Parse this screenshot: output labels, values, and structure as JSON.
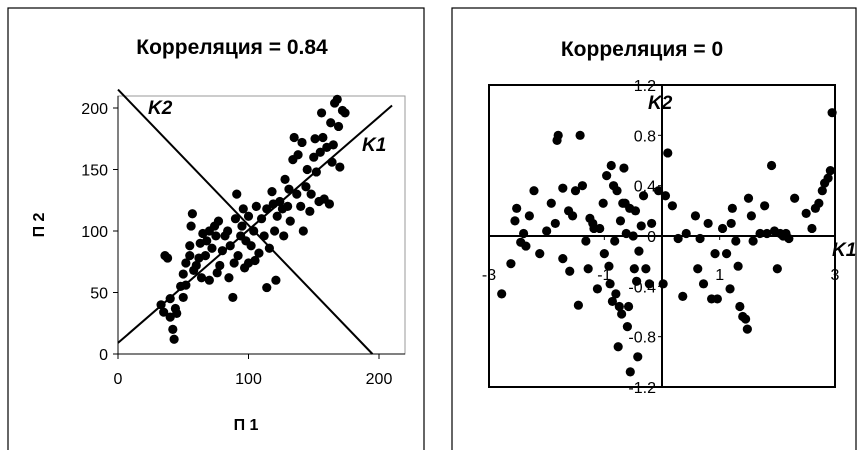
{
  "colors": {
    "marker": "#000000",
    "line": "#000000",
    "frame": "#000000",
    "background": "#ffffff"
  },
  "chart_data": [
    {
      "type": "scatter",
      "title": "Корреляция = 0.84",
      "xlabel": "П 1",
      "ylabel": "П 2",
      "xlim": [
        0,
        200
      ],
      "ylim": [
        0,
        200
      ],
      "xticks": [
        "0",
        "100",
        "200"
      ],
      "yticks": [
        "0",
        "50",
        "100",
        "150",
        "200"
      ],
      "grid": false,
      "lines": [
        {
          "label": "K1",
          "x": [
            0,
            210
          ],
          "y": [
            9,
            202
          ]
        },
        {
          "label": "K2",
          "x": [
            0,
            195
          ],
          "y": [
            215,
            0
          ]
        }
      ],
      "points": [
        [
          33,
          40
        ],
        [
          35,
          34
        ],
        [
          36,
          80
        ],
        [
          38,
          78
        ],
        [
          40,
          30
        ],
        [
          40,
          45
        ],
        [
          42,
          20
        ],
        [
          43,
          12
        ],
        [
          44,
          37
        ],
        [
          45,
          33
        ],
        [
          48,
          55
        ],
        [
          50,
          65
        ],
        [
          50,
          46
        ],
        [
          52,
          56
        ],
        [
          52,
          74
        ],
        [
          55,
          80
        ],
        [
          55,
          88
        ],
        [
          56,
          104
        ],
        [
          57,
          114
        ],
        [
          58,
          68
        ],
        [
          60,
          72
        ],
        [
          62,
          78
        ],
        [
          63,
          90
        ],
        [
          64,
          62
        ],
        [
          65,
          98
        ],
        [
          67,
          80
        ],
        [
          68,
          92
        ],
        [
          70,
          60
        ],
        [
          70,
          100
        ],
        [
          72,
          86
        ],
        [
          74,
          104
        ],
        [
          75,
          96
        ],
        [
          76,
          66
        ],
        [
          77,
          108
        ],
        [
          78,
          72
        ],
        [
          80,
          84
        ],
        [
          82,
          96
        ],
        [
          84,
          100
        ],
        [
          85,
          62
        ],
        [
          86,
          88
        ],
        [
          88,
          46
        ],
        [
          89,
          74
        ],
        [
          90,
          110
        ],
        [
          91,
          130
        ],
        [
          92,
          80
        ],
        [
          94,
          96
        ],
        [
          95,
          104
        ],
        [
          96,
          118
        ],
        [
          97,
          70
        ],
        [
          98,
          92
        ],
        [
          100,
          74
        ],
        [
          100,
          112
        ],
        [
          102,
          88
        ],
        [
          104,
          100
        ],
        [
          105,
          76
        ],
        [
          106,
          120
        ],
        [
          108,
          82
        ],
        [
          110,
          110
        ],
        [
          112,
          96
        ],
        [
          114,
          118
        ],
        [
          114,
          54
        ],
        [
          116,
          86
        ],
        [
          118,
          132
        ],
        [
          119,
          122
        ],
        [
          120,
          100
        ],
        [
          121,
          60
        ],
        [
          122,
          112
        ],
        [
          124,
          124
        ],
        [
          126,
          118
        ],
        [
          127,
          96
        ],
        [
          128,
          142
        ],
        [
          130,
          120
        ],
        [
          131,
          134
        ],
        [
          132,
          108
        ],
        [
          134,
          158
        ],
        [
          135,
          176
        ],
        [
          137,
          130
        ],
        [
          138,
          162
        ],
        [
          140,
          120
        ],
        [
          141,
          172
        ],
        [
          142,
          100
        ],
        [
          144,
          136
        ],
        [
          145,
          150
        ],
        [
          147,
          116
        ],
        [
          148,
          130
        ],
        [
          150,
          160
        ],
        [
          151,
          175
        ],
        [
          152,
          148
        ],
        [
          154,
          124
        ],
        [
          155,
          164
        ],
        [
          156,
          196
        ],
        [
          157,
          176
        ],
        [
          158,
          126
        ],
        [
          160,
          168
        ],
        [
          162,
          122
        ],
        [
          163,
          188
        ],
        [
          164,
          156
        ],
        [
          165,
          170
        ],
        [
          166,
          204
        ],
        [
          168,
          207
        ],
        [
          169,
          185
        ],
        [
          170,
          152
        ],
        [
          172,
          198
        ],
        [
          174,
          196
        ]
      ]
    },
    {
      "type": "scatter",
      "title": "Корреляция = 0",
      "xlabel": "",
      "ylabel": "",
      "xlim": [
        -3,
        3
      ],
      "ylim": [
        -1.2,
        1.2
      ],
      "xticks": [
        "-3",
        "-1",
        "1",
        "3"
      ],
      "yticks": [
        "-1.2",
        "-0.8",
        "-0.4",
        "0",
        "0.4",
        "0.8",
        "1.2"
      ],
      "grid": false,
      "axis_labels": [
        "K1",
        "K2"
      ],
      "points": [
        [
          -2.78,
          -0.46
        ],
        [
          -2.62,
          -0.22
        ],
        [
          -2.55,
          0.12
        ],
        [
          -2.52,
          0.22
        ],
        [
          -2.45,
          -0.05
        ],
        [
          -2.4,
          0.02
        ],
        [
          -2.36,
          -0.08
        ],
        [
          -2.3,
          0.16
        ],
        [
          -2.22,
          0.36
        ],
        [
          -2.12,
          -0.14
        ],
        [
          -2.0,
          0.04
        ],
        [
          -1.92,
          0.26
        ],
        [
          -1.85,
          0.1
        ],
        [
          -1.82,
          0.76
        ],
        [
          -1.8,
          0.8
        ],
        [
          -1.72,
          -0.18
        ],
        [
          -1.72,
          0.38
        ],
        [
          -1.62,
          0.2
        ],
        [
          -1.6,
          -0.28
        ],
        [
          -1.55,
          0.16
        ],
        [
          -1.5,
          0.36
        ],
        [
          -1.45,
          -0.55
        ],
        [
          -1.42,
          0.8
        ],
        [
          -1.38,
          0.4
        ],
        [
          -1.32,
          -0.04
        ],
        [
          -1.28,
          -0.26
        ],
        [
          -1.25,
          0.14
        ],
        [
          -1.2,
          0.1
        ],
        [
          -1.18,
          0.06
        ],
        [
          -1.12,
          -0.42
        ],
        [
          -1.08,
          0.06
        ],
        [
          -1.02,
          0.26
        ],
        [
          -1.0,
          -0.14
        ],
        [
          -0.96,
          0.48
        ],
        [
          -0.92,
          -0.24
        ],
        [
          -0.9,
          -0.38
        ],
        [
          -0.88,
          0.56
        ],
        [
          -0.86,
          -0.52
        ],
        [
          -0.84,
          0.4
        ],
        [
          -0.82,
          -0.04
        ],
        [
          -0.8,
          -0.46
        ],
        [
          -0.78,
          0.36
        ],
        [
          -0.76,
          -0.88
        ],
        [
          -0.74,
          -0.56
        ],
        [
          -0.72,
          0.12
        ],
        [
          -0.7,
          -0.62
        ],
        [
          -0.68,
          0.26
        ],
        [
          -0.66,
          0.54
        ],
        [
          -0.64,
          0.26
        ],
        [
          -0.62,
          0.02
        ],
        [
          -0.6,
          -0.72
        ],
        [
          -0.58,
          -0.56
        ],
        [
          -0.56,
          0.22
        ],
        [
          -0.55,
          -1.08
        ],
        [
          -0.5,
          0.0
        ],
        [
          -0.48,
          -0.26
        ],
        [
          -0.46,
          0.2
        ],
        [
          -0.44,
          -0.36
        ],
        [
          -0.42,
          -0.96
        ],
        [
          -0.4,
          -0.12
        ],
        [
          -0.36,
          0.08
        ],
        [
          -0.32,
          0.32
        ],
        [
          -0.28,
          -0.26
        ],
        [
          -0.22,
          -0.38
        ],
        [
          -0.18,
          0.1
        ],
        [
          -0.06,
          0.36
        ],
        [
          0.02,
          -0.38
        ],
        [
          0.06,
          0.32
        ],
        [
          0.1,
          0.66
        ],
        [
          0.18,
          0.24
        ],
        [
          0.28,
          -0.02
        ],
        [
          0.36,
          -0.48
        ],
        [
          0.42,
          0.02
        ],
        [
          0.58,
          0.16
        ],
        [
          0.62,
          -0.26
        ],
        [
          0.66,
          -0.02
        ],
        [
          0.72,
          -0.38
        ],
        [
          0.8,
          0.1
        ],
        [
          0.86,
          -0.5
        ],
        [
          0.92,
          -0.14
        ],
        [
          0.96,
          -0.5
        ],
        [
          1.05,
          0.06
        ],
        [
          1.12,
          -0.14
        ],
        [
          1.18,
          -0.42
        ],
        [
          1.2,
          0.1
        ],
        [
          1.22,
          0.22
        ],
        [
          1.28,
          -0.04
        ],
        [
          1.32,
          -0.24
        ],
        [
          1.35,
          -0.56
        ],
        [
          1.4,
          -0.64
        ],
        [
          1.45,
          -0.66
        ],
        [
          1.48,
          -0.74
        ],
        [
          1.5,
          0.3
        ],
        [
          1.55,
          0.16
        ],
        [
          1.58,
          -0.04
        ],
        [
          1.7,
          0.02
        ],
        [
          1.78,
          0.24
        ],
        [
          1.82,
          0.02
        ],
        [
          1.9,
          0.56
        ],
        [
          1.95,
          0.04
        ],
        [
          2.0,
          -0.26
        ],
        [
          2.05,
          0.02
        ],
        [
          2.1,
          0.0
        ],
        [
          2.15,
          0.02
        ],
        [
          2.2,
          -0.02
        ],
        [
          2.3,
          0.3
        ],
        [
          2.5,
          0.18
        ],
        [
          2.6,
          0.06
        ],
        [
          2.66,
          0.22
        ],
        [
          2.72,
          0.26
        ],
        [
          2.78,
          0.36
        ],
        [
          2.82,
          0.42
        ],
        [
          2.88,
          0.46
        ],
        [
          2.92,
          0.52
        ],
        [
          2.95,
          0.98
        ]
      ]
    }
  ]
}
